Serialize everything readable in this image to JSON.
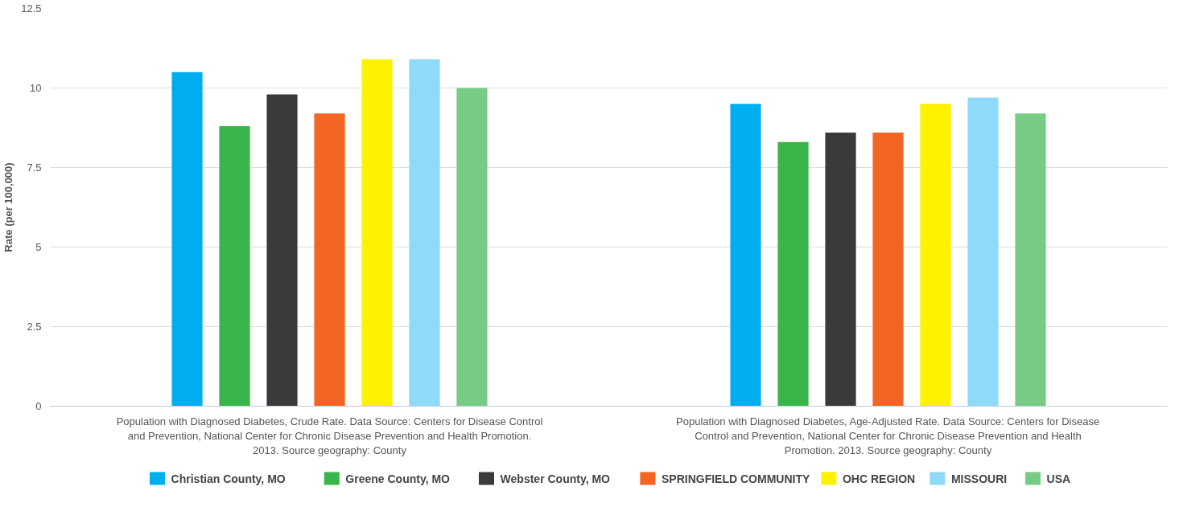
{
  "chart_data": {
    "type": "bar",
    "ylabel": "Rate (per 100,000)",
    "categories": [
      "Population with Diagnosed Diabetes, Crude Rate. Data Source: Centers for Disease Control and Prevention, National Center for Chronic Disease Prevention and Health Promotion. 2013. Source geography: County",
      "Population with Diagnosed Diabetes, Age-Adjusted Rate. Data Source: Centers for Disease Control and Prevention, National Center for Chronic Disease Prevention and Health Promotion. 2013. Source geography: County"
    ],
    "series": [
      {
        "name": "Christian County, MO",
        "color": "#00aeef",
        "values": [
          10.5,
          9.5
        ]
      },
      {
        "name": "Greene County, MO",
        "color": "#39b54a",
        "values": [
          8.8,
          8.3
        ]
      },
      {
        "name": "Webster County, MO",
        "color": "#3a3a3a",
        "values": [
          9.8,
          8.6
        ]
      },
      {
        "name": "SPRINGFIELD COMMUNITY",
        "color": "#f26522",
        "values": [
          9.2,
          8.6
        ]
      },
      {
        "name": "OHC REGION",
        "color": "#fff200",
        "values": [
          10.9,
          9.5
        ]
      },
      {
        "name": "MISSOURI",
        "color": "#8fdaf8",
        "values": [
          10.9,
          9.7
        ]
      },
      {
        "name": "USA",
        "color": "#77cc83",
        "values": [
          10.0,
          9.2
        ]
      }
    ],
    "ylim": [
      0,
      12.5
    ],
    "yticks": [
      0,
      2.5,
      5,
      7.5,
      10,
      12.5
    ],
    "grid": "y",
    "legend": "bottom"
  }
}
